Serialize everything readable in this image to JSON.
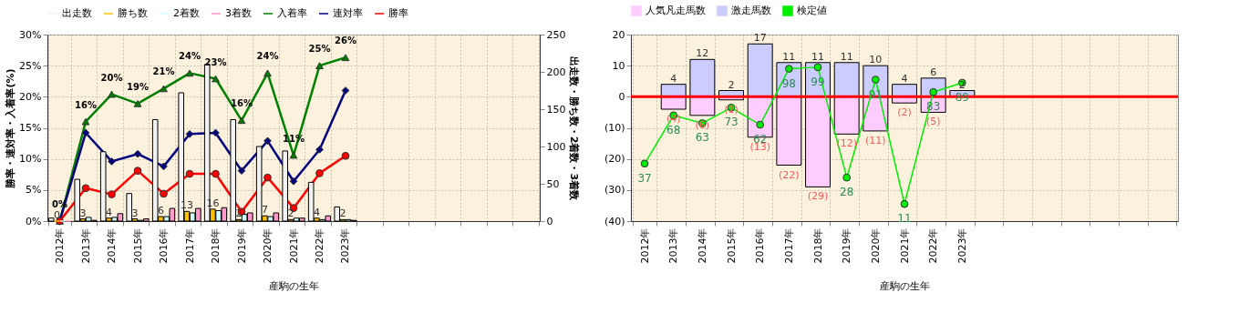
{
  "chart_data": [
    {
      "type": "bar",
      "categories": [
        "2012年",
        "2013年",
        "2014年",
        "2015年",
        "2016年",
        "2017年",
        "2018年",
        "2019年",
        "2020年",
        "2021年",
        "2022年",
        "2023年",
        null,
        null,
        null,
        null,
        null,
        null,
        null
      ],
      "xlabel": "産駒の生年",
      "ylabel": "勝率・連対率・入着率(%)",
      "y2label": "出走数・勝ち数・2着数・3着数",
      "ylim": [
        0,
        30
      ],
      "yticks": [
        {
          "value": 0,
          "label": "0%"
        },
        {
          "value": 5,
          "label": "5%"
        },
        {
          "value": 10,
          "label": "10%"
        },
        {
          "value": 15,
          "label": "15%"
        },
        {
          "value": 20,
          "label": "20%"
        },
        {
          "value": 25,
          "label": "25%"
        },
        {
          "value": 30,
          "label": "30%"
        }
      ],
      "y2lim": [
        0,
        250
      ],
      "y2ticks": [
        0,
        50,
        100,
        150,
        200,
        250
      ],
      "grid": true,
      "legend": "top",
      "series": [
        {
          "name": "出走数",
          "color": "#f2f2f2",
          "axis": "y2",
          "values": [
            4,
            56,
            93,
            37,
            136,
            172,
            210,
            136,
            100,
            94,
            52,
            19,
            null,
            null,
            null,
            null,
            null,
            null,
            null
          ]
        },
        {
          "name": "勝ち数",
          "color": "#ffc000",
          "axis": "y2",
          "values": [
            0,
            3,
            4,
            3,
            6,
            13,
            16,
            2,
            7,
            2,
            4,
            2,
            null,
            null,
            null,
            null,
            null,
            null,
            null
          ],
          "value_labels": [
            "0",
            "3",
            "4",
            "3",
            "6",
            "13",
            "16",
            "2",
            "7",
            "2",
            "4",
            "2",
            null,
            null,
            null,
            null,
            null,
            null,
            null
          ]
        },
        {
          "name": "2着数",
          "color": "#ccffff",
          "axis": "y2",
          "values": [
            0,
            5,
            5,
            1,
            6,
            11,
            14,
            9,
            6,
            4,
            2,
            2,
            null,
            null,
            null,
            null,
            null,
            null,
            null
          ]
        },
        {
          "name": "3着数",
          "color": "#ff99cc",
          "axis": "y2",
          "values": [
            0,
            1,
            10,
            3,
            17,
            17,
            18,
            11,
            11,
            4,
            7,
            1,
            null,
            null,
            null,
            null,
            null,
            null,
            null
          ]
        },
        {
          "name": "入着率",
          "type": "line",
          "color": "#008000",
          "marker": "triangle",
          "axis": "y",
          "values": [
            0,
            16,
            20.4,
            18.9,
            21.3,
            23.8,
            22.9,
            16.2,
            23.8,
            10.6,
            25,
            26.3,
            null,
            null,
            null,
            null,
            null,
            null,
            null
          ],
          "value_labels": [
            "0%",
            "16%",
            "20%",
            "19%",
            "21%",
            "24%",
            "23%",
            "16%",
            "24%",
            "11%",
            "25%",
            "26%",
            null,
            null,
            null,
            null,
            null,
            null,
            null
          ]
        },
        {
          "name": "連対率",
          "type": "line",
          "color": "#000080",
          "marker": "diamond",
          "axis": "y",
          "values": [
            0,
            14.2,
            9.6,
            10.8,
            8.8,
            14,
            14.2,
            8.1,
            12.9,
            6.4,
            11.5,
            21,
            null,
            null,
            null,
            null,
            null,
            null,
            null
          ]
        },
        {
          "name": "勝率",
          "type": "line",
          "color": "#ff0000",
          "marker": "circle",
          "axis": "y",
          "values": [
            0,
            5.3,
            4.3,
            8.1,
            4.4,
            7.6,
            7.6,
            1.5,
            7,
            2.1,
            7.7,
            10.5,
            null,
            null,
            null,
            null,
            null,
            null,
            null
          ]
        }
      ]
    },
    {
      "type": "bar",
      "stacked": true,
      "categories": [
        "2012年",
        "2013年",
        "2014年",
        "2015年",
        "2016年",
        "2017年",
        "2018年",
        "2019年",
        "2020年",
        "2021年",
        "2022年",
        "2023年",
        null,
        null,
        null,
        null,
        null,
        null,
        null
      ],
      "xlabel": "産駒の生年",
      "ylim": [
        -40,
        20
      ],
      "yticks": [
        20,
        10,
        0,
        {
          "value": -10,
          "label": "(10)"
        },
        {
          "value": -20,
          "label": "(20)"
        },
        {
          "value": -30,
          "label": "(30)"
        },
        {
          "value": -40,
          "label": "(40)"
        }
      ],
      "y2lim": [
        0,
        120
      ],
      "grid": true,
      "legend": "top",
      "ref_lines": [
        {
          "axis": "y",
          "value": 0,
          "color": "#ff0000"
        }
      ],
      "series": [
        {
          "name": "人気凡走馬数",
          "color": "#ffccff",
          "values": [
            null,
            -4,
            -6,
            -1,
            -13,
            -22,
            -29,
            -12,
            -11,
            -2,
            -5,
            null,
            null,
            null,
            null,
            null,
            null,
            null,
            null
          ],
          "value_labels": [
            null,
            "(4)",
            "(6)",
            "(1)",
            "(13)",
            "(22)",
            "(29)",
            "(12)",
            "(11)",
            "(2)",
            "(5)",
            null,
            null,
            null,
            null,
            null,
            null,
            null,
            null
          ]
        },
        {
          "name": "激走馬数",
          "color": "#ccccff",
          "values": [
            null,
            4,
            12,
            2,
            17,
            11,
            11,
            11,
            10,
            4,
            6,
            2,
            null,
            null,
            null,
            null,
            null,
            null,
            null
          ],
          "value_labels": [
            null,
            "4",
            "12",
            "2",
            "17",
            "11",
            "11",
            "11",
            "10",
            "4",
            "6",
            "2",
            null,
            null,
            null,
            null,
            null,
            null,
            null
          ]
        },
        {
          "name": "検定値",
          "type": "line",
          "color": "#00ee00",
          "marker": "circle",
          "axis": "y2",
          "values": [
            37,
            68,
            63,
            73,
            62,
            98,
            99,
            28,
            91,
            11,
            83,
            89,
            null,
            null,
            null,
            null,
            null,
            null,
            null
          ],
          "value_labels": [
            "37",
            "68",
            "63",
            "73",
            "62",
            "98",
            "99",
            "28",
            "91",
            "11",
            "83",
            "89",
            null,
            null,
            null,
            null,
            null,
            null,
            null
          ]
        }
      ]
    }
  ]
}
